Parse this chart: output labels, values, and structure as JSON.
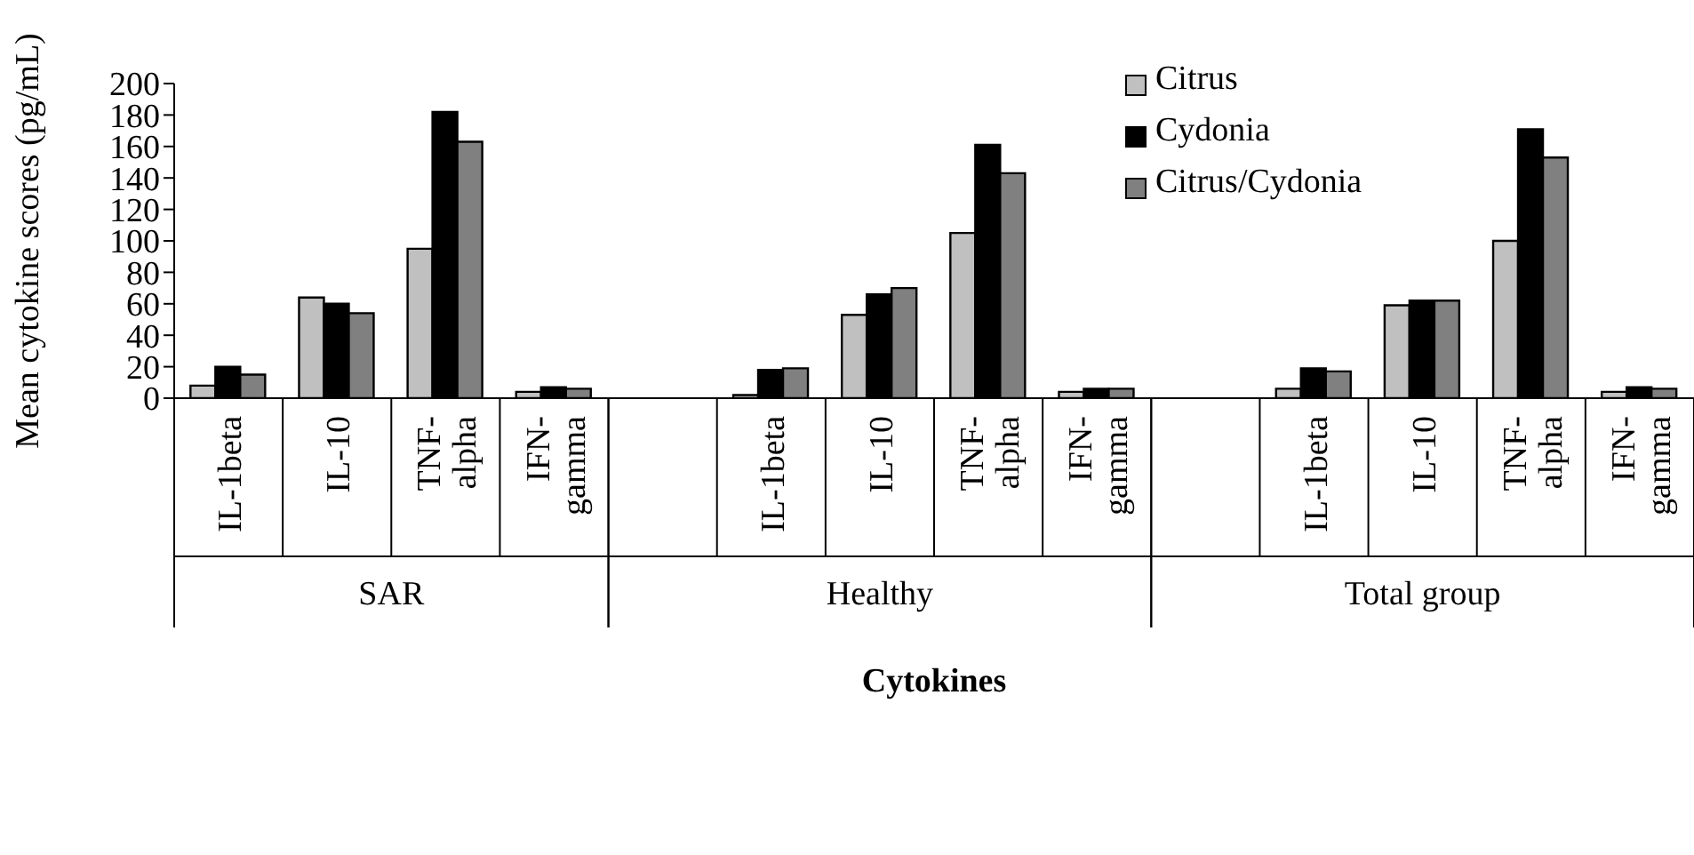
{
  "chart_data": {
    "type": "bar",
    "xlabel": "Cytokines",
    "ylabel": "Mean cytokine scores (pg/mL)",
    "categories": [
      "IL-1beta",
      "IL-10",
      "TNF-alpha",
      "IFN-gamma",
      null,
      "IL-1beta",
      "IL-10",
      "TNF-alpha",
      "IFN-gamma",
      null,
      "IL-1beta",
      "IL-10",
      "TNF-alpha",
      "IFN-gamma"
    ],
    "annotations": [
      "SAR",
      "Healthy",
      "Total group"
    ],
    "series": [
      {
        "name": "Citrus",
        "color": "#c0c0c0",
        "values": [
          8,
          64,
          95,
          4,
          null,
          2,
          53,
          105,
          4,
          null,
          6,
          59,
          100,
          4
        ]
      },
      {
        "name": "Cydonia",
        "color": "#000000",
        "values": [
          20,
          60,
          182,
          7,
          null,
          18,
          66,
          161,
          6,
          null,
          19,
          62,
          171,
          7
        ]
      },
      {
        "name": "Citrus/Cydonia",
        "color": "#808080",
        "values": [
          15,
          54,
          163,
          6,
          null,
          19,
          70,
          143,
          6,
          null,
          17,
          62,
          153,
          6
        ]
      }
    ],
    "ylim": [
      0,
      200
    ],
    "yticks": [
      0,
      20,
      40,
      60,
      80,
      100,
      120,
      140,
      160,
      180,
      200
    ],
    "grid": false,
    "legend": "top right"
  }
}
